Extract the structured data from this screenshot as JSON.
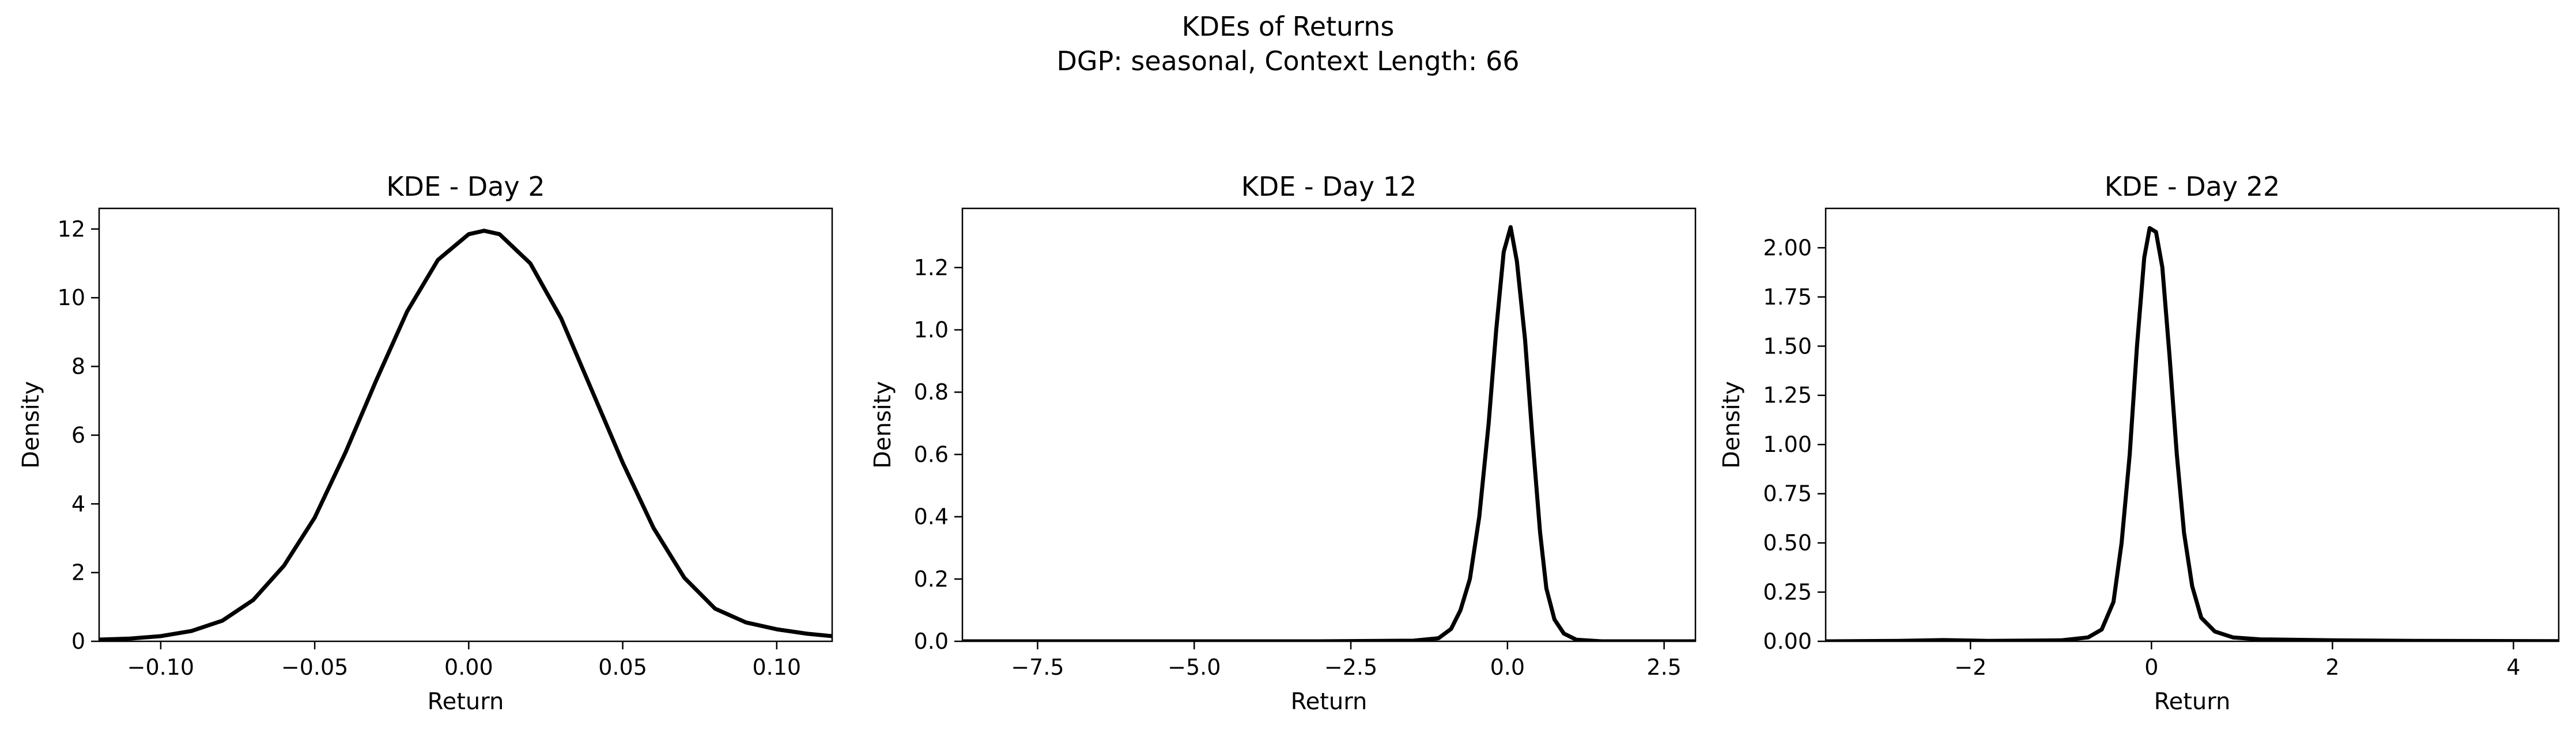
{
  "figure": {
    "title": "KDEs of Returns",
    "subtitle": "DGP: seasonal, Context Length: 66"
  },
  "chart_data": [
    {
      "type": "line",
      "title": "KDE - Day 2",
      "xlabel": "Return",
      "ylabel": "Density",
      "xlim": [
        -0.12,
        0.118
      ],
      "ylim": [
        0,
        12.6
      ],
      "xticks": [
        -0.1,
        -0.05,
        0.0,
        0.05,
        0.1
      ],
      "xtick_labels": [
        "−0.10",
        "−0.05",
        "0.00",
        "0.05",
        "0.10"
      ],
      "yticks": [
        0,
        2,
        4,
        6,
        8,
        10,
        12
      ],
      "ytick_labels": [
        "0",
        "2",
        "4",
        "6",
        "8",
        "10",
        "12"
      ],
      "grid": false,
      "line_color": "#000000",
      "x": [
        -0.12,
        -0.11,
        -0.1,
        -0.09,
        -0.08,
        -0.07,
        -0.06,
        -0.05,
        -0.04,
        -0.03,
        -0.02,
        -0.01,
        0.0,
        0.005,
        0.01,
        0.02,
        0.03,
        0.04,
        0.05,
        0.06,
        0.07,
        0.08,
        0.09,
        0.1,
        0.11,
        0.118
      ],
      "y": [
        0.05,
        0.08,
        0.15,
        0.3,
        0.6,
        1.2,
        2.2,
        3.6,
        5.5,
        7.6,
        9.6,
        11.1,
        11.85,
        11.95,
        11.85,
        11.0,
        9.4,
        7.3,
        5.2,
        3.3,
        1.85,
        0.95,
        0.55,
        0.35,
        0.22,
        0.15
      ]
    },
    {
      "type": "line",
      "title": "KDE - Day 12",
      "xlabel": "Return",
      "ylabel": "Density",
      "xlim": [
        -8.7,
        3.0
      ],
      "ylim": [
        0,
        1.39
      ],
      "xticks": [
        -7.5,
        -5.0,
        -2.5,
        0.0,
        2.5
      ],
      "xtick_labels": [
        "−7.5",
        "−5.0",
        "−2.5",
        "0.0",
        "2.5"
      ],
      "yticks": [
        0.0,
        0.2,
        0.4,
        0.6,
        0.8,
        1.0,
        1.2
      ],
      "ytick_labels": [
        "0.0",
        "0.2",
        "0.4",
        "0.6",
        "0.8",
        "1.0",
        "1.2"
      ],
      "grid": false,
      "line_color": "#000000",
      "x": [
        -8.7,
        -6.0,
        -3.0,
        -1.5,
        -1.1,
        -0.9,
        -0.75,
        -0.6,
        -0.45,
        -0.3,
        -0.18,
        -0.06,
        0.05,
        0.15,
        0.28,
        0.4,
        0.52,
        0.62,
        0.75,
        0.9,
        1.1,
        1.5,
        3.0
      ],
      "y": [
        0.0,
        0.0,
        0.0,
        0.002,
        0.01,
        0.04,
        0.1,
        0.2,
        0.4,
        0.7,
        1.0,
        1.25,
        1.33,
        1.22,
        0.97,
        0.65,
        0.35,
        0.17,
        0.07,
        0.025,
        0.005,
        0.0,
        0.0
      ]
    },
    {
      "type": "line",
      "title": "KDE - Day 22",
      "xlabel": "Return",
      "ylabel": "Density",
      "xlim": [
        -3.6,
        4.5
      ],
      "ylim": [
        0,
        2.2
      ],
      "xticks": [
        -2,
        0,
        2,
        4
      ],
      "xtick_labels": [
        "−2",
        "0",
        "2",
        "4"
      ],
      "yticks": [
        0.0,
        0.25,
        0.5,
        0.75,
        1.0,
        1.25,
        1.5,
        1.75,
        2.0
      ],
      "ytick_labels": [
        "0.00",
        "0.25",
        "0.50",
        "0.75",
        "1.00",
        "1.25",
        "1.50",
        "1.75",
        "2.00"
      ],
      "grid": false,
      "line_color": "#000000",
      "x": [
        -3.6,
        -2.8,
        -2.3,
        -1.8,
        -1.0,
        -0.7,
        -0.55,
        -0.42,
        -0.33,
        -0.24,
        -0.16,
        -0.08,
        -0.02,
        0.05,
        0.12,
        0.2,
        0.28,
        0.36,
        0.45,
        0.55,
        0.7,
        0.9,
        1.2,
        2.0,
        3.0,
        4.5
      ],
      "y": [
        0.0,
        0.002,
        0.006,
        0.002,
        0.005,
        0.02,
        0.06,
        0.2,
        0.5,
        0.95,
        1.5,
        1.95,
        2.1,
        2.08,
        1.9,
        1.45,
        0.95,
        0.55,
        0.28,
        0.12,
        0.05,
        0.02,
        0.01,
        0.005,
        0.002,
        0.001
      ]
    }
  ]
}
